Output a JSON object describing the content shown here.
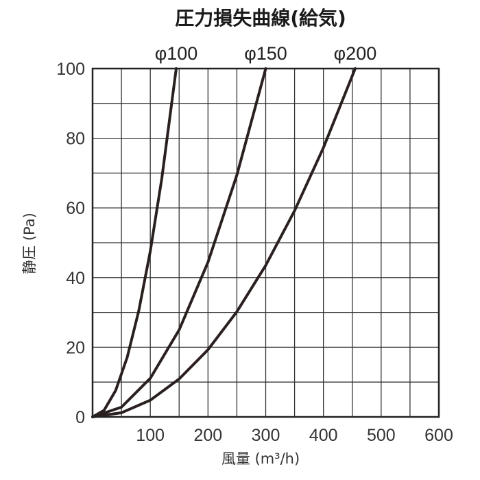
{
  "chart_data": {
    "type": "line",
    "title": "圧力損失曲線(給気)",
    "xlabel": "風量 (m³/h)",
    "ylabel": "静圧 (Pa)",
    "xlim": [
      0,
      600
    ],
    "ylim": [
      0,
      100
    ],
    "x_ticks": [
      "100",
      "200",
      "300",
      "400",
      "500",
      "600"
    ],
    "y_ticks": [
      "0",
      "20",
      "40",
      "60",
      "80",
      "100"
    ],
    "grid": true,
    "series": [
      {
        "name": "φ100",
        "x": [
          0,
          20,
          40,
          60,
          80,
          100,
          120,
          145
        ],
        "y": [
          0,
          1.9,
          7.6,
          17.1,
          30.4,
          47.6,
          68.5,
          100
        ]
      },
      {
        "name": "φ150",
        "x": [
          0,
          50,
          100,
          150,
          200,
          250,
          300
        ],
        "y": [
          0,
          2.8,
          11.1,
          25,
          44.4,
          69.4,
          100
        ]
      },
      {
        "name": "φ200",
        "x": [
          0,
          50,
          100,
          150,
          200,
          250,
          300,
          350,
          400,
          455
        ],
        "y": [
          0,
          1.2,
          4.8,
          10.9,
          19.3,
          30.2,
          43.5,
          59.2,
          77.3,
          100
        ]
      }
    ]
  }
}
